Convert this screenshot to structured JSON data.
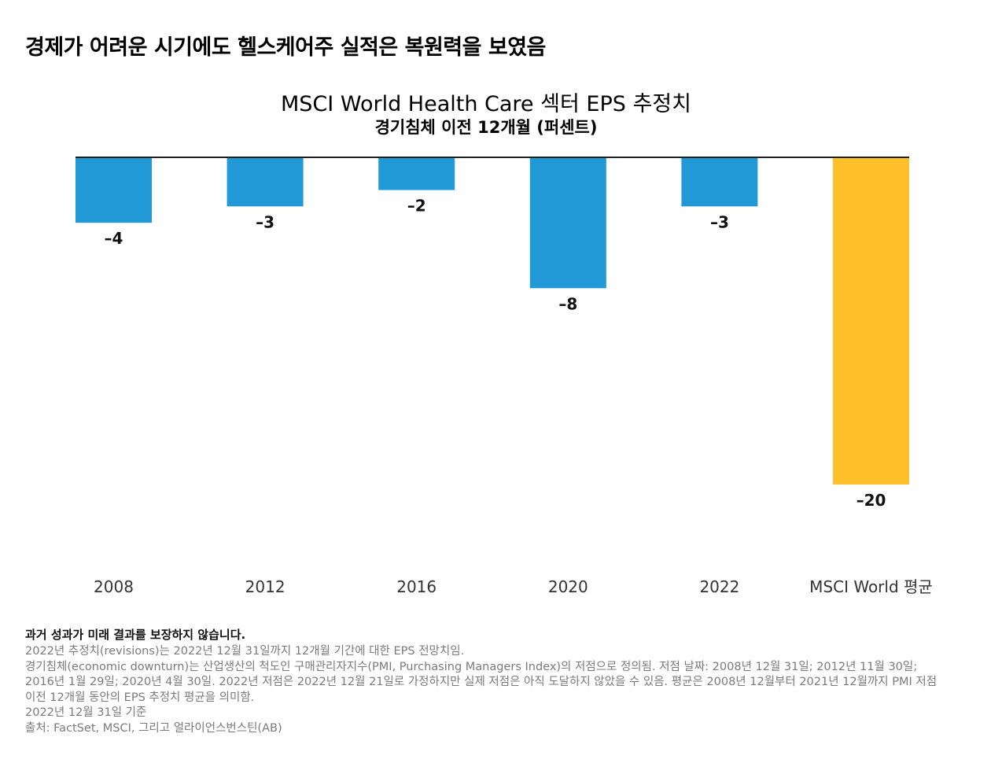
{
  "headline": "경제가 어려운 시기에도 헬스케어주 실적은 복원력을 보였음",
  "colors": {
    "bar_primary": "#2199d6",
    "bar_highlight": "#fdc02b",
    "baseline": "#222222",
    "footnote_text": "#7a7a7a"
  },
  "chart_data": {
    "type": "bar",
    "title": "MSCI World Health Care 섹터 EPS 추정치",
    "subtitle": "경기침체 이전 12개월 (퍼센트)",
    "categories": [
      "2008",
      "2012",
      "2016",
      "2020",
      "2022",
      "MSCI World 평균"
    ],
    "values": [
      -4,
      -3,
      -2,
      -8,
      -3,
      -20
    ],
    "data_labels": [
      "–4",
      "–3",
      "–2",
      "–8",
      "–3",
      "–20"
    ],
    "bar_colors": [
      "#2199d6",
      "#2199d6",
      "#2199d6",
      "#2199d6",
      "#2199d6",
      "#fdc02b"
    ],
    "ylim": [
      -20,
      0
    ],
    "xlabel": "",
    "ylabel": "",
    "grid": false,
    "legend": "none"
  },
  "footnotes": {
    "disclaimer": "과거 성과가 미래 결과를 보장하지 않습니다.",
    "lines": [
      "2022년 추정치(revisions)는 2022년 12월 31일까지 12개월 기간에 대한 EPS 전망치임.",
      "경기침체(economic downturn)는 산업생산의 척도인 구매관리자지수(PMI, Purchasing Managers Index)의 저점으로 정의됨. 저점 날짜: 2008년 12월 31일; 2012년 11월 30일; 2016년 1월 29일; 2020년 4월 30일. 2022년 저점은 2022년 12월 21일로 가정하지만 실제 저점은 아직 도달하지 않았을 수 있음. 평균은 2008년 12월부터 2021년 12월까지 PMI 저점 이전 12개월 동안의 EPS 추정치 평균을 의미함.",
      "2022년 12월 31일 기준",
      "출처: FactSet, MSCI, 그리고 얼라이언스번스틴(AB)"
    ]
  }
}
